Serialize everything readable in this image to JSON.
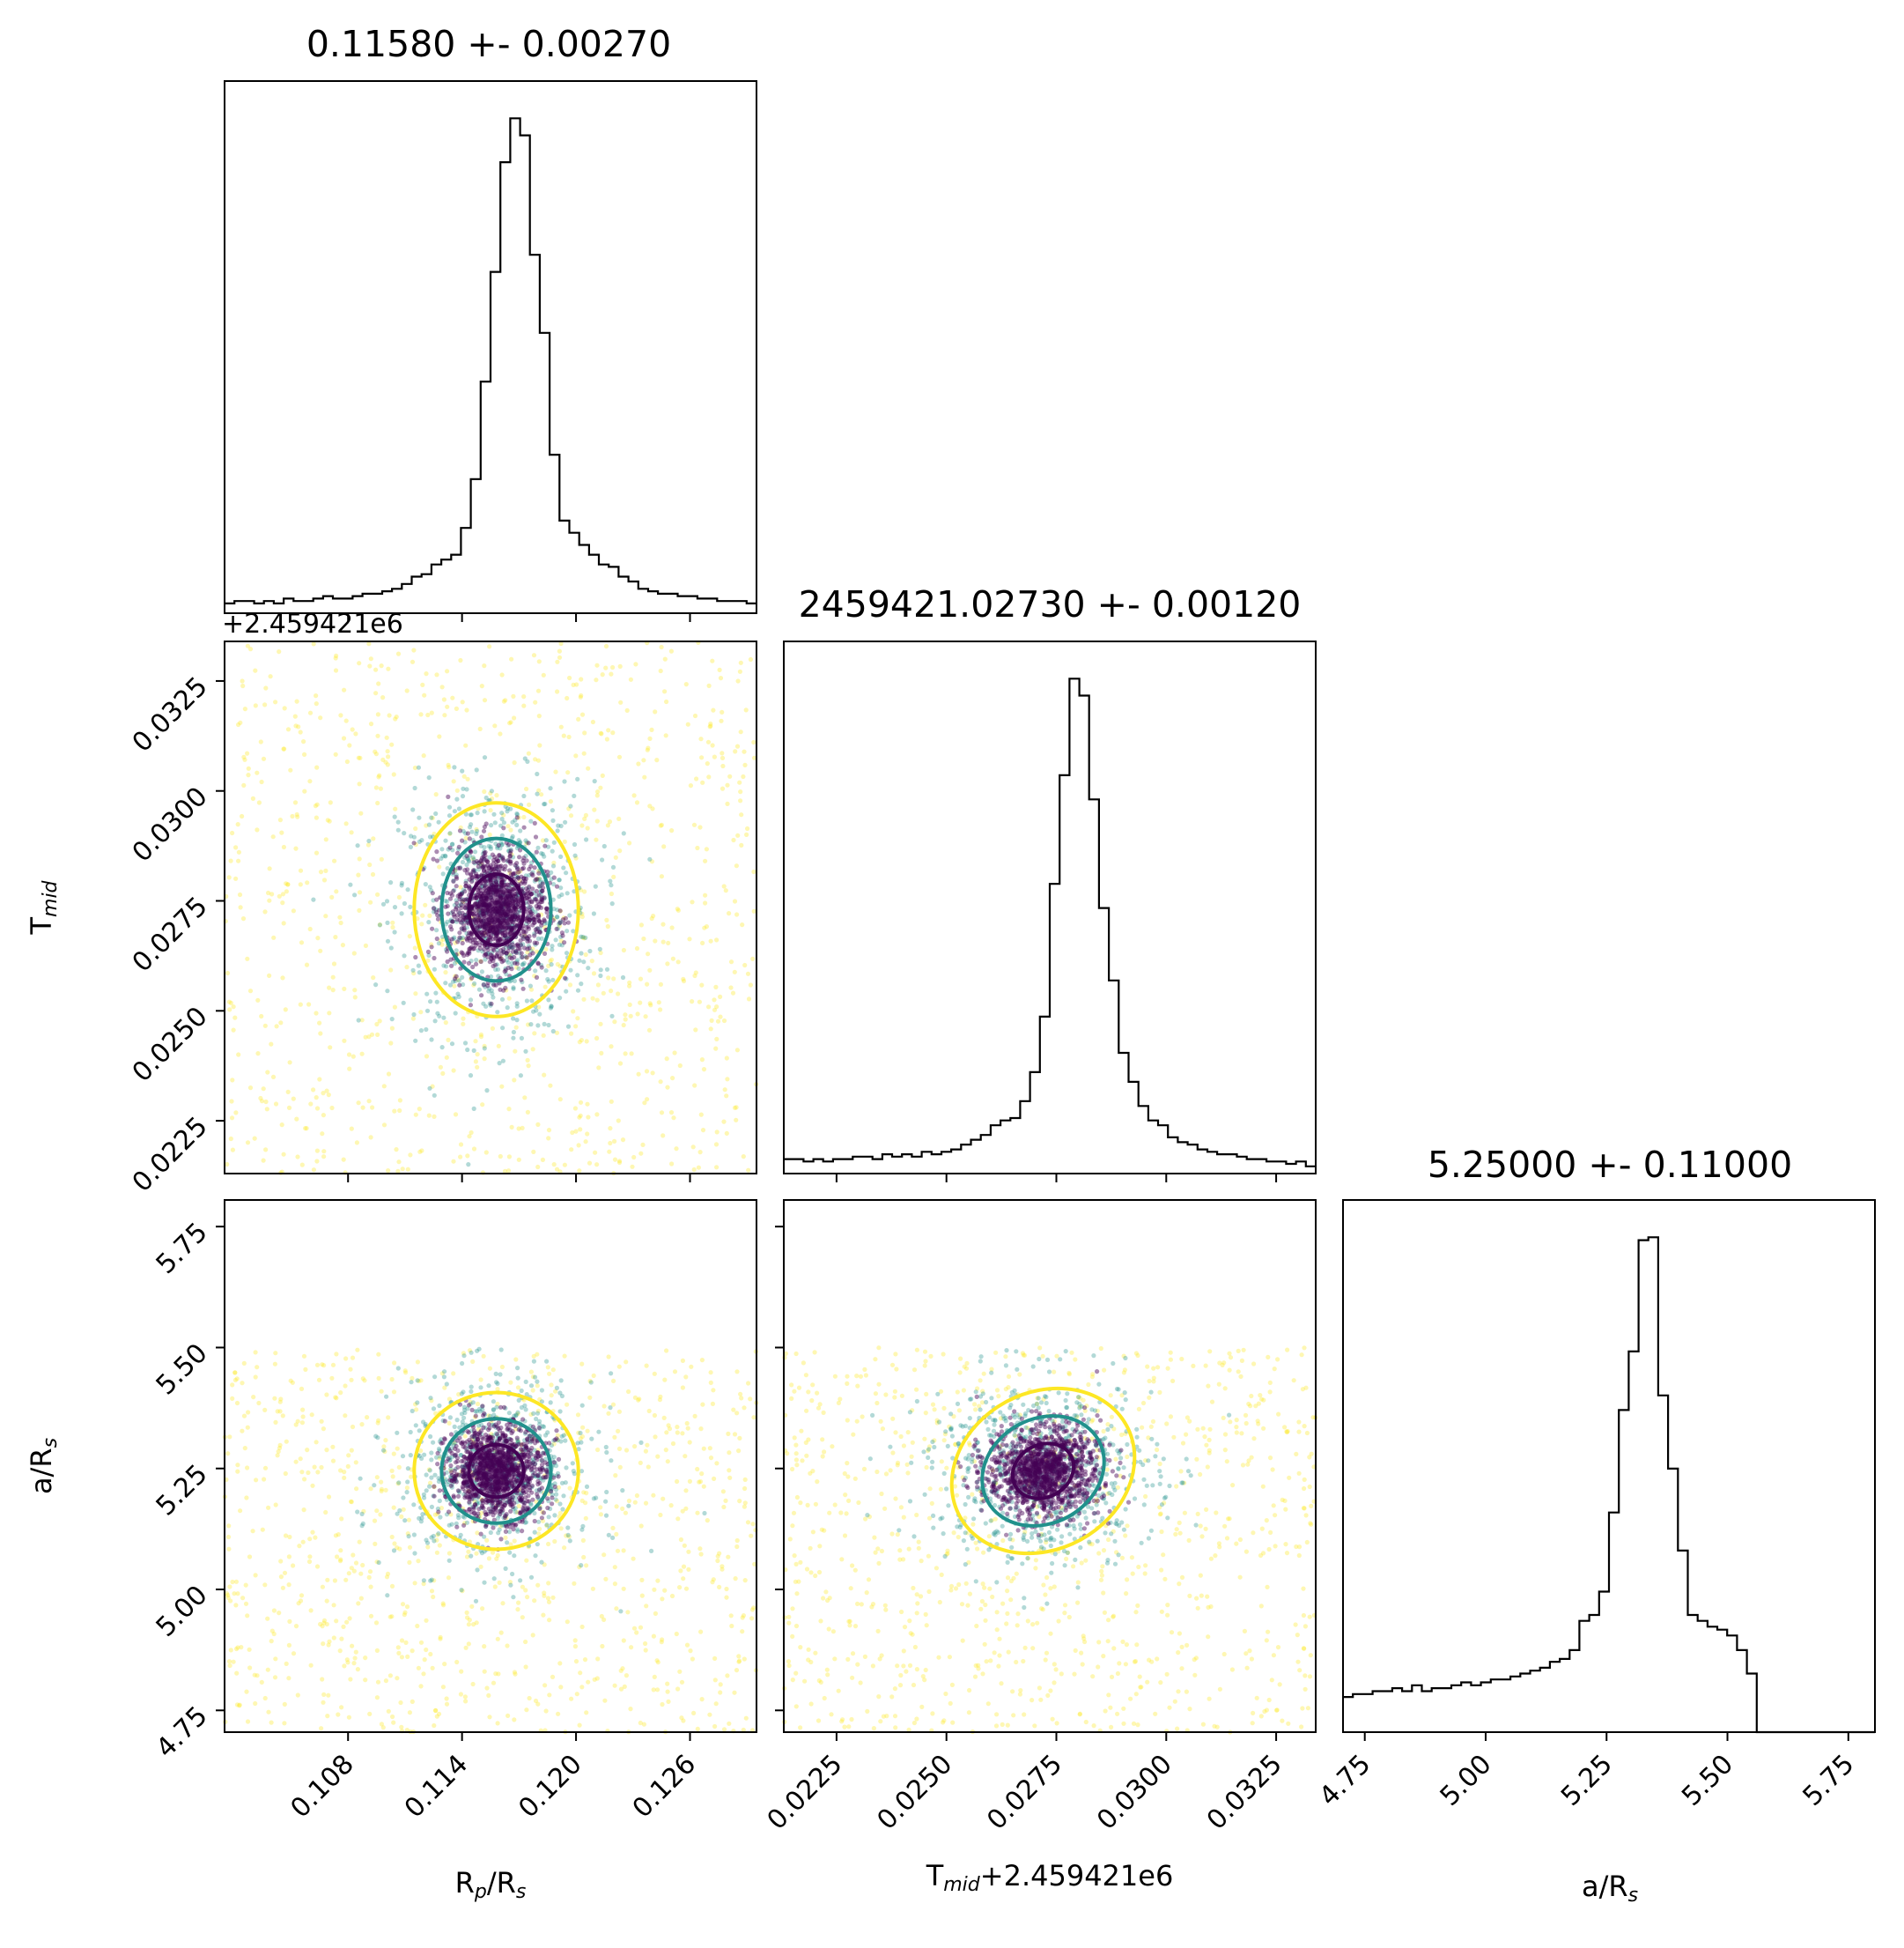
{
  "chart_data": {
    "type": "corner",
    "parameters": [
      {
        "key": "rp",
        "label": "R",
        "label_sub": "p",
        "label_mid": "/R",
        "label_sub2": "s",
        "title": "0.11580 +- 0.00270",
        "range": [
          0.1015,
          0.1295
        ],
        "ticks": [
          0.108,
          0.114,
          0.12,
          0.126
        ],
        "tick_labels": [
          "0.108",
          "0.114",
          "0.120",
          "0.126"
        ]
      },
      {
        "key": "tmid",
        "label": "T",
        "label_sub": "mid",
        "label_mid": "",
        "label_sub2": "",
        "xlabel_suffix": "+2.459421e6",
        "offset_text": "+2.459421e6",
        "title": "2459421.02730 +- 0.00120",
        "range": [
          0.0213,
          0.0334
        ],
        "ticks": [
          0.0225,
          0.025,
          0.0275,
          0.03,
          0.0325
        ],
        "tick_labels": [
          "0.0225",
          "0.0250",
          "0.0275",
          "0.0300",
          "0.0325"
        ]
      },
      {
        "key": "ars",
        "label": "a/R",
        "label_sub": "s",
        "label_mid": "",
        "label_sub2": "",
        "title": "5.25000 +- 0.11000",
        "range": [
          4.705,
          5.805
        ],
        "ticks": [
          4.75,
          5.0,
          5.25,
          5.5,
          5.75
        ],
        "tick_labels": [
          "4.75",
          "5.00",
          "5.25",
          "5.50",
          "5.75"
        ]
      }
    ],
    "histograms": {
      "rp": {
        "range": [
          0.1015,
          0.1295
        ],
        "counts": [
          4,
          5,
          5,
          4,
          5,
          4,
          6,
          5,
          5,
          6,
          7,
          6,
          6,
          7,
          8,
          8,
          9,
          10,
          12,
          15,
          16,
          20,
          22,
          24,
          35,
          55,
          95,
          140,
          185,
          203,
          196,
          147,
          115,
          65,
          38,
          33,
          28,
          24,
          20,
          19,
          15,
          13,
          10,
          9,
          8,
          8,
          7,
          7,
          6,
          6,
          5,
          5,
          5,
          4
        ]
      },
      "tmid": {
        "range": [
          0.0213,
          0.0334
        ],
        "counts": [
          6,
          6,
          5,
          6,
          5,
          6,
          6,
          7,
          7,
          6,
          8,
          7,
          8,
          7,
          9,
          8,
          9,
          10,
          12,
          14,
          16,
          20,
          22,
          23,
          30,
          42,
          65,
          120,
          165,
          205,
          198,
          155,
          110,
          80,
          50,
          38,
          28,
          22,
          20,
          15,
          13,
          12,
          10,
          9,
          8,
          8,
          7,
          6,
          6,
          5,
          5,
          4,
          5,
          3
        ]
      },
      "ars": {
        "range": [
          4.705,
          5.805
        ],
        "counts": [
          12,
          13,
          13,
          14,
          14,
          15,
          14,
          16,
          14,
          15,
          15,
          16,
          17,
          16,
          17,
          18,
          18,
          19,
          20,
          21,
          22,
          24,
          25,
          28,
          38,
          40,
          48,
          75,
          110,
          130,
          168,
          169,
          115,
          90,
          62,
          40,
          38,
          36,
          35,
          33,
          28,
          20,
          0,
          0,
          0,
          0,
          0,
          0,
          0,
          0,
          0,
          0,
          0,
          0
        ]
      }
    },
    "contours": {
      "rp_tmid": {
        "center": [
          0.1158,
          0.0273
        ],
        "levels": [
          "39.3%",
          "86.5%",
          "98.9%"
        ]
      },
      "rp_ars": {
        "center": [
          0.1158,
          5.245
        ],
        "levels": [
          "39.3%",
          "86.5%",
          "98.9%"
        ]
      },
      "tmid_ars": {
        "center": [
          0.0272,
          5.245
        ],
        "levels": [
          "39.3%",
          "86.5%",
          "98.9%"
        ]
      }
    },
    "colors": {
      "hist": "#000000",
      "level1": "#440154",
      "level2": "#21918c",
      "level3": "#fde725"
    },
    "grid": false,
    "legend": "none"
  }
}
